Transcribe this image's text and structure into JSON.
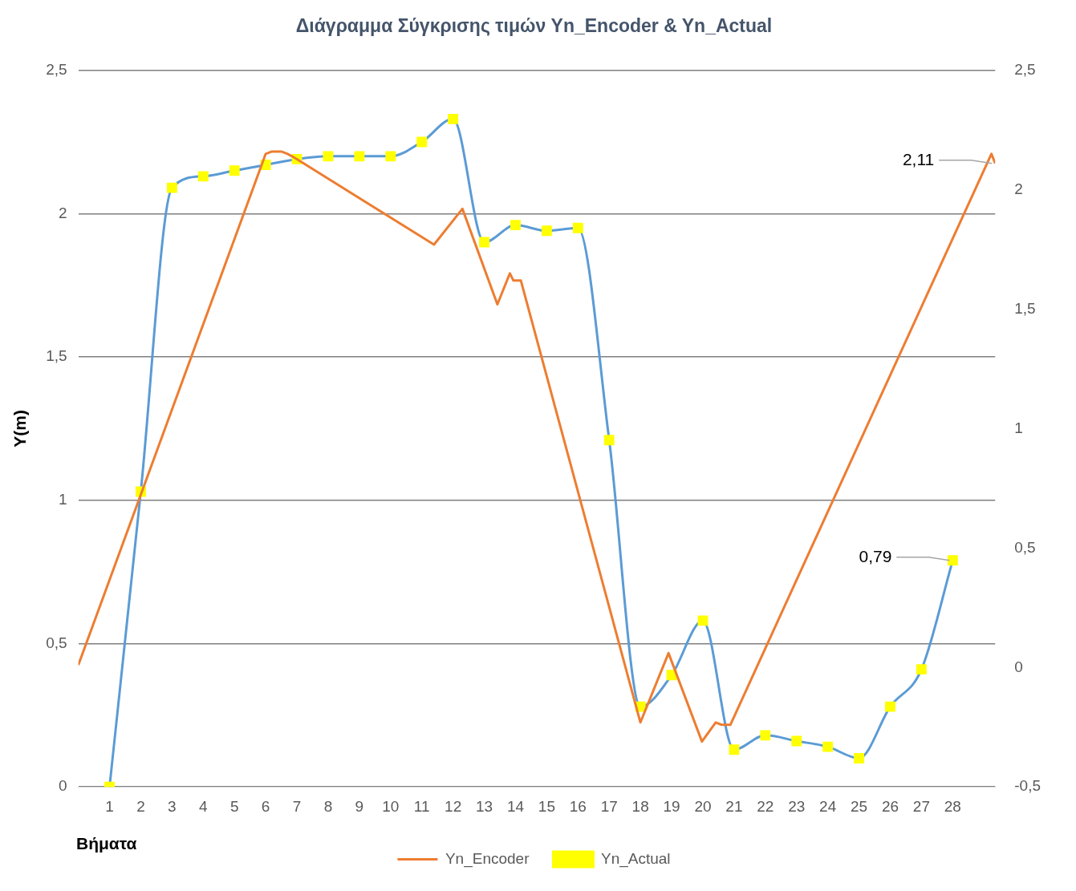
{
  "chart_data": {
    "type": "line",
    "title": "Διάγραμμα Σύγκρισης τιμών Yn_Encoder & Yn_Actual",
    "xlabel": "Βήματα",
    "ylabel": "Y(m)",
    "xlim": [
      0,
      29.36
    ],
    "xticks": [
      1,
      2,
      3,
      4,
      5,
      6,
      7,
      8,
      9,
      10,
      11,
      12,
      13,
      14,
      15,
      16,
      17,
      18,
      19,
      20,
      21,
      22,
      23,
      24,
      25,
      26,
      27,
      28
    ],
    "ylim": [
      0,
      2.5
    ],
    "yticks": [
      0,
      {
        "value": 0.5,
        "label": "0,5"
      },
      1,
      {
        "value": 1.5,
        "label": "1,5"
      },
      2,
      {
        "value": 2.5,
        "label": "2,5"
      }
    ],
    "y2lim": [
      -0.5,
      2.5
    ],
    "y2ticks": [
      {
        "value": -0.5,
        "label": "-0,5"
      },
      0,
      {
        "value": 0.5,
        "label": "0,5"
      },
      1,
      {
        "value": 1.5,
        "label": "1,5"
      },
      2,
      {
        "value": 2.5,
        "label": "2,5"
      }
    ],
    "grid": "y",
    "legend": "bottom",
    "series": [
      {
        "name": "Yn_Encoder",
        "color": "#ed7d31",
        "axis": "y2",
        "marker": "none",
        "x": [
          0,
          6.0,
          6.2,
          6.5,
          6.7,
          6.97,
          11.39,
          12.3,
          13.42,
          13.82,
          13.93,
          14.17,
          18.0,
          18.9,
          19.97,
          20.41,
          20.6,
          20.88,
          29.24,
          29.36
        ],
        "values": [
          0.01,
          2.15,
          2.16,
          2.16,
          2.15,
          2.13,
          1.77,
          1.92,
          1.52,
          1.65,
          1.62,
          1.62,
          -0.23,
          0.06,
          -0.31,
          -0.23,
          -0.24,
          -0.24,
          2.15,
          2.11
        ],
        "value_labels": [
          null,
          null,
          null,
          null,
          null,
          null,
          null,
          null,
          null,
          null,
          null,
          null,
          null,
          null,
          null,
          null,
          null,
          null,
          null,
          "2,11"
        ]
      },
      {
        "name": "Yn_Actual",
        "color": "#5b9bd5",
        "marker": "square",
        "x": [
          1,
          2,
          3,
          4,
          5,
          6,
          7,
          8,
          9,
          10,
          11,
          12,
          13,
          14,
          15,
          16,
          17,
          18,
          19,
          20,
          21,
          22,
          23,
          24,
          25,
          26,
          27,
          28
        ],
        "values": [
          0,
          1.03,
          2.09,
          2.13,
          2.15,
          2.17,
          2.19,
          2.2,
          2.2,
          2.2,
          2.25,
          2.33,
          1.9,
          1.96,
          1.94,
          1.95,
          1.21,
          0.28,
          0.39,
          0.58,
          0.13,
          0.18,
          0.16,
          0.14,
          0.1,
          0.28,
          0.41,
          0.79
        ],
        "value_labels": [
          null,
          null,
          null,
          null,
          null,
          null,
          null,
          null,
          null,
          null,
          null,
          null,
          null,
          null,
          null,
          null,
          null,
          null,
          null,
          null,
          null,
          null,
          null,
          null,
          null,
          null,
          null,
          "0,79"
        ]
      }
    ]
  }
}
